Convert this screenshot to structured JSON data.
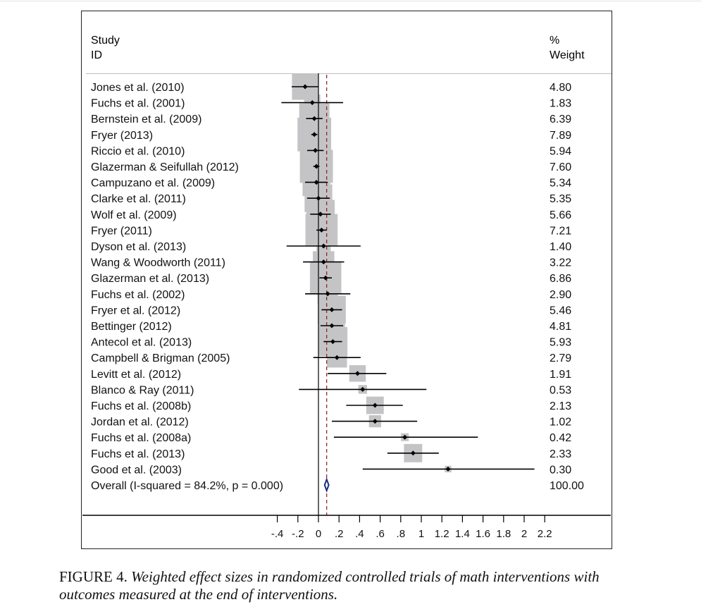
{
  "chart_data": {
    "type": "forest",
    "header_left": [
      "Study",
      "ID"
    ],
    "header_right": [
      "%",
      "Weight"
    ],
    "xlim": [
      -0.4,
      2.2
    ],
    "ticks": [
      -0.4,
      -0.2,
      0,
      0.2,
      0.4,
      0.6,
      0.8,
      1,
      1.2,
      1.4,
      1.6,
      1.8,
      2,
      2.2
    ],
    "tick_labels": [
      "-.4",
      "-.2",
      "0",
      ".2",
      ".4",
      ".6",
      ".8",
      "1",
      "1.2",
      "1.4",
      "1.6",
      "1.8",
      "2",
      "2.2"
    ],
    "null_line": 0,
    "overall_line": 0.08,
    "studies": [
      {
        "label": "Jones et al. (2010)",
        "es": -0.13,
        "lo": -0.26,
        "hi": 0.0,
        "weight": "4.80"
      },
      {
        "label": "Fuchs et al. (2001)",
        "es": -0.06,
        "lo": -0.36,
        "hi": 0.24,
        "weight": "1.83"
      },
      {
        "label": "Bernstein et al. (2009)",
        "es": -0.04,
        "lo": -0.12,
        "hi": 0.04,
        "weight": "6.39"
      },
      {
        "label": "Fryer (2013)",
        "es": -0.04,
        "lo": -0.07,
        "hi": -0.01,
        "weight": "7.89"
      },
      {
        "label": "Riccio et al. (2010)",
        "es": -0.03,
        "lo": -0.11,
        "hi": 0.05,
        "weight": "5.94"
      },
      {
        "label": "Glazerman & Seifullah (2012)",
        "es": -0.02,
        "lo": -0.05,
        "hi": 0.01,
        "weight": "7.60"
      },
      {
        "label": "Campuzano et al. (2009)",
        "es": -0.02,
        "lo": -0.13,
        "hi": 0.09,
        "weight": "5.34"
      },
      {
        "label": "Clarke et al. (2011)",
        "es": 0.0,
        "lo": -0.11,
        "hi": 0.11,
        "weight": "5.35"
      },
      {
        "label": "Wolf et al. (2009)",
        "es": 0.02,
        "lo": -0.08,
        "hi": 0.12,
        "weight": "5.66"
      },
      {
        "label": "Fryer (2011)",
        "es": 0.03,
        "lo": -0.02,
        "hi": 0.08,
        "weight": "7.21"
      },
      {
        "label": "Dyson et al. (2013)",
        "es": 0.05,
        "lo": -0.31,
        "hi": 0.41,
        "weight": "1.40"
      },
      {
        "label": "Wang & Woodworth (2011)",
        "es": 0.05,
        "lo": -0.15,
        "hi": 0.25,
        "weight": "3.22"
      },
      {
        "label": "Glazerman et al. (2013)",
        "es": 0.07,
        "lo": 0.01,
        "hi": 0.13,
        "weight": "6.86"
      },
      {
        "label": "Fuchs et al. (2002)",
        "es": 0.09,
        "lo": -0.13,
        "hi": 0.31,
        "weight": "2.90"
      },
      {
        "label": "Fryer et al. (2012)",
        "es": 0.13,
        "lo": 0.03,
        "hi": 0.23,
        "weight": "5.46"
      },
      {
        "label": "Bettinger (2012)",
        "es": 0.13,
        "lo": 0.02,
        "hi": 0.24,
        "weight": "4.81"
      },
      {
        "label": "Antecol et al. (2013)",
        "es": 0.14,
        "lo": 0.05,
        "hi": 0.23,
        "weight": "5.93"
      },
      {
        "label": "Campbell & Brigman (2005)",
        "es": 0.18,
        "lo": -0.05,
        "hi": 0.41,
        "weight": "2.79"
      },
      {
        "label": "Levitt et al. (2012)",
        "es": 0.38,
        "lo": 0.09,
        "hi": 0.66,
        "weight": "1.91"
      },
      {
        "label": "Blanco & Ray (2011)",
        "es": 0.43,
        "lo": -0.19,
        "hi": 1.05,
        "weight": "0.53"
      },
      {
        "label": "Fuchs et al. (2008b)",
        "es": 0.55,
        "lo": 0.27,
        "hi": 0.82,
        "weight": "2.13"
      },
      {
        "label": "Jordan et al. (2012)",
        "es": 0.55,
        "lo": 0.13,
        "hi": 0.96,
        "weight": "1.02"
      },
      {
        "label": "Fuchs et al. (2008a)",
        "es": 0.84,
        "lo": 0.15,
        "hi": 1.55,
        "weight": "0.42"
      },
      {
        "label": "Fuchs et al. (2013)",
        "es": 0.92,
        "lo": 0.67,
        "hi": 1.17,
        "weight": "2.33"
      },
      {
        "label": "Good et al. (2003)",
        "es": 1.26,
        "lo": 0.43,
        "hi": 2.1,
        "weight": "0.30"
      }
    ],
    "overall": {
      "label": "Overall  (I-squared = 84.2%, p = 0.000)",
      "es": 0.08,
      "lo": 0.06,
      "hi": 0.1,
      "weight": "100.00"
    }
  },
  "caption": {
    "figure_number": "FIGURE 4.",
    "text": "Weighted effect sizes in randomized controlled trials of math interventions with outcomes measured at the end of interventions."
  },
  "colors": {
    "box": "#c4c4c6",
    "overall_diamond": "#1c2f7a",
    "overall_line": "#8b1a1a",
    "axis": "#000000"
  }
}
